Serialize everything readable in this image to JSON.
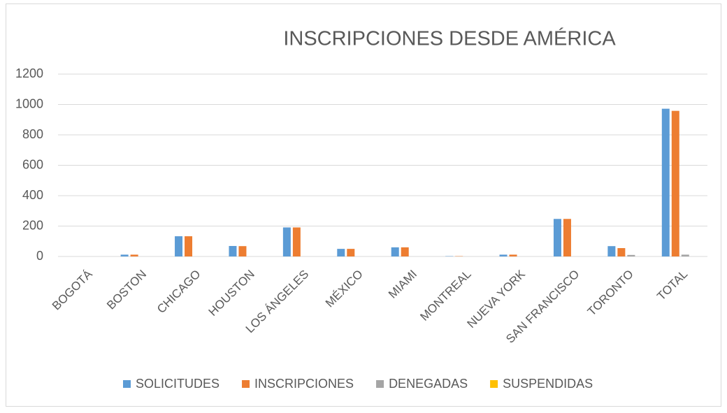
{
  "chart_data": {
    "type": "bar",
    "title": "INSCRIPCIONES DESDE AMÉRICA",
    "categories": [
      "BOGOTÁ",
      "BOSTON",
      "CHICAGO",
      "HOUSTON",
      "LOS ÁNGELES",
      "MÉXICO",
      "MIAMI",
      "MONTREAL",
      "NUEVA YORK",
      "SAN FRANCISCO",
      "TORONTO",
      "TOTAL"
    ],
    "series": [
      {
        "name": "SOLICITUDES",
        "color": "#5b9bd5",
        "values": [
          0,
          12,
          133,
          69,
          191,
          50,
          60,
          2,
          12,
          247,
          68,
          972
        ]
      },
      {
        "name": "INSCRIPCIONES",
        "color": "#ed7d31",
        "values": [
          0,
          12,
          133,
          68,
          191,
          50,
          60,
          2,
          12,
          247,
          55,
          958
        ]
      },
      {
        "name": "DENEGADAS",
        "color": "#a5a5a5",
        "values": [
          0,
          0,
          0,
          0,
          0,
          0,
          0,
          0,
          0,
          0,
          10,
          12
        ]
      },
      {
        "name": "SUSPENDIDAS",
        "color": "#ffc000",
        "values": [
          0,
          0,
          0,
          0,
          0,
          0,
          0,
          0,
          0,
          0,
          0,
          0
        ]
      }
    ],
    "ylim": [
      0,
      1200
    ],
    "yticks": [
      0,
      200,
      400,
      600,
      800,
      1000,
      1200
    ],
    "grid": true,
    "legend": "bottom"
  }
}
